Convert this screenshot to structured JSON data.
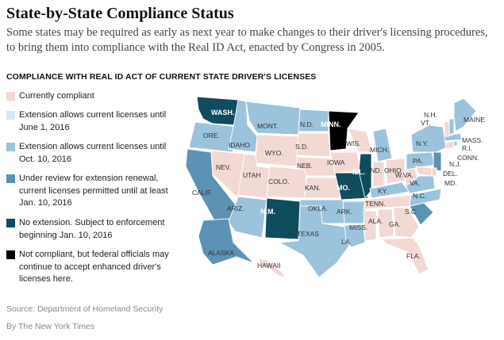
{
  "header": {
    "title": "State-by-State Compliance Status",
    "subtitle": "Some states may be required as early as next year to make changes to their driver's licensing procedures, to bring them into compliance with the Real ID Act, enacted by Congress in 2005."
  },
  "section_heading": "COMPLIANCE WITH REAL ID ACT OF CURRENT STATE DRIVER'S LICENSES",
  "colors": {
    "compliant": "#f2d9d3",
    "ext_june": "#d6e7f1",
    "ext_oct": "#9bc3dc",
    "review": "#5c93b5",
    "no_ext": "#0f4c5d",
    "not_compliant": "#000000"
  },
  "legend": [
    {
      "key": "compliant",
      "label": "Currently compliant"
    },
    {
      "key": "ext_june",
      "label": "Extension allows current licenses until June 1, 2016"
    },
    {
      "key": "ext_oct",
      "label": "Extension allows current licenses until Oct. 10, 2016"
    },
    {
      "key": "review",
      "label": "Under review for extension renewal, current licenses permitted until at least Jan. 10, 2016"
    },
    {
      "key": "no_ext",
      "label": "No extension. Subject to enforcement beginning Jan. 10, 2016"
    },
    {
      "key": "not_compliant",
      "label": "Not compliant, but federal officials may continue to accept enhanced driver's licenses here."
    }
  ],
  "map": {
    "states": [
      {
        "label": "WASH.",
        "status": "no_ext"
      },
      {
        "label": "ORE.",
        "status": "ext_oct"
      },
      {
        "label": "CALIF.",
        "status": "review"
      },
      {
        "label": "IDAHO",
        "status": "ext_oct"
      },
      {
        "label": "NEV.",
        "status": "compliant"
      },
      {
        "label": "MONT.",
        "status": "ext_oct"
      },
      {
        "label": "WYO.",
        "status": "compliant"
      },
      {
        "label": "UTAH",
        "status": "compliant"
      },
      {
        "label": "ARIZ.",
        "status": "ext_oct"
      },
      {
        "label": "COLO.",
        "status": "compliant"
      },
      {
        "label": "N.M.",
        "status": "no_ext"
      },
      {
        "label": "N.D.",
        "status": "ext_oct"
      },
      {
        "label": "S.D.",
        "status": "compliant"
      },
      {
        "label": "NEB.",
        "status": "compliant"
      },
      {
        "label": "KAN.",
        "status": "compliant"
      },
      {
        "label": "OKLA.",
        "status": "ext_oct"
      },
      {
        "label": "TEXAS",
        "status": "ext_oct"
      },
      {
        "label": "MINN.",
        "status": "not_compliant"
      },
      {
        "label": "IOWA",
        "status": "compliant"
      },
      {
        "label": "MO.",
        "status": "no_ext"
      },
      {
        "label": "ARK.",
        "status": "ext_oct"
      },
      {
        "label": "LA.",
        "status": "ext_oct"
      },
      {
        "label": "WIS.",
        "status": "compliant"
      },
      {
        "label": "ILL.",
        "status": "no_ext"
      },
      {
        "label": "MICH.",
        "status": "ext_oct"
      },
      {
        "label": "IND.",
        "status": "compliant"
      },
      {
        "label": "OHIO",
        "status": "compliant"
      },
      {
        "label": "KY.",
        "status": "ext_oct"
      },
      {
        "label": "TENN.",
        "status": "compliant"
      },
      {
        "label": "MISS.",
        "status": "compliant"
      },
      {
        "label": "ALA.",
        "status": "compliant"
      },
      {
        "label": "GA.",
        "status": "compliant"
      },
      {
        "label": "FLA.",
        "status": "compliant"
      },
      {
        "label": "S.C.",
        "status": "review"
      },
      {
        "label": "N.C.",
        "status": "ext_oct"
      },
      {
        "label": "VA.",
        "status": "ext_oct"
      },
      {
        "label": "W.VA.",
        "status": "compliant"
      },
      {
        "label": "PA.",
        "status": "ext_oct"
      },
      {
        "label": "N.Y.",
        "status": "ext_oct"
      },
      {
        "label": "N.J.",
        "status": "review"
      },
      {
        "label": "DEL.",
        "status": "compliant"
      },
      {
        "label": "MD.",
        "status": "compliant"
      },
      {
        "label": "CONN.",
        "status": "compliant"
      },
      {
        "label": "R.I.",
        "status": "ext_oct"
      },
      {
        "label": "MASS.",
        "status": "ext_oct"
      },
      {
        "label": "VT.",
        "status": "compliant"
      },
      {
        "label": "N.H.",
        "status": "ext_oct"
      },
      {
        "label": "MAINE",
        "status": "ext_oct"
      },
      {
        "label": "ALASKA",
        "status": "review"
      },
      {
        "label": "HAWAII",
        "status": "compliant"
      }
    ]
  },
  "source": "Source: Department of Homeland Security",
  "credit": "By The New York Times"
}
